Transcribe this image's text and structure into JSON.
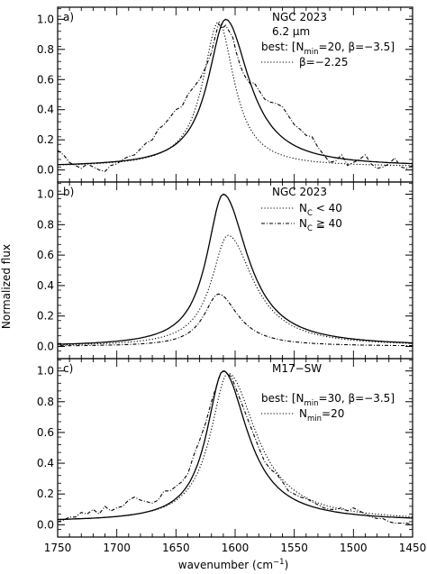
{
  "figure": {
    "ylabel": "Normalized flux",
    "xlabel_main": "wavenumber (cm",
    "xlabel_sup": "−1",
    "xlabel_close": ")"
  },
  "chart_data": [
    {
      "type": "line",
      "panel_label": "a)",
      "title_lines": [
        "NGC 2023",
        "6.2 μm"
      ],
      "xlim": [
        1750,
        1450
      ],
      "ylim": [
        -0.08,
        1.08
      ],
      "yticks": [
        0.0,
        0.2,
        0.4,
        0.6,
        0.8,
        1.0
      ],
      "xticks": [
        1750,
        1700,
        1650,
        1600,
        1550,
        1500,
        1450
      ],
      "legend": {
        "placement": "top-right",
        "rows": [
          {
            "style": "solid",
            "text": "best: [N",
            "sub": "min",
            "text2": "=20, β=−3.5]"
          },
          {
            "style": "dotted",
            "text": "β=−2.25"
          }
        ]
      },
      "series": [
        {
          "name": "best: [Nmin=20, β=−3.5]",
          "style": "solid",
          "model": {
            "peak": 1608,
            "amp": 1.0,
            "wl": 18,
            "wr": 24,
            "base": 0.02
          }
        },
        {
          "name": "β=−2.25",
          "style": "dotted",
          "model": {
            "peak": 1614,
            "amp": 0.985,
            "wl": 16,
            "wr": 16,
            "base": 0.02
          }
        },
        {
          "name": "data",
          "style": "dashdot",
          "x": [
            1750,
            1745,
            1740,
            1735,
            1730,
            1725,
            1720,
            1715,
            1710,
            1705,
            1700,
            1695,
            1690,
            1685,
            1680,
            1675,
            1670,
            1665,
            1660,
            1655,
            1650,
            1645,
            1640,
            1635,
            1630,
            1625,
            1620,
            1617,
            1614,
            1611,
            1608,
            1605,
            1602,
            1599,
            1596,
            1593,
            1590,
            1587,
            1584,
            1580,
            1575,
            1570,
            1565,
            1560,
            1555,
            1550,
            1545,
            1540,
            1535,
            1530,
            1525,
            1520,
            1515,
            1510,
            1505,
            1500,
            1495,
            1490,
            1485,
            1480,
            1475,
            1470,
            1465,
            1460,
            1455,
            1450
          ],
          "y": [
            0.13,
            0.1,
            0.05,
            0.03,
            0.01,
            0.04,
            0.02,
            0.0,
            -0.01,
            0.03,
            0.04,
            0.07,
            0.09,
            0.1,
            0.14,
            0.18,
            0.2,
            0.27,
            0.3,
            0.35,
            0.4,
            0.42,
            0.5,
            0.55,
            0.6,
            0.68,
            0.78,
            0.88,
            0.97,
            0.94,
            0.96,
            0.92,
            0.88,
            0.78,
            0.7,
            0.64,
            0.6,
            0.57,
            0.58,
            0.53,
            0.47,
            0.45,
            0.44,
            0.42,
            0.36,
            0.3,
            0.27,
            0.23,
            0.22,
            0.15,
            0.1,
            0.05,
            0.06,
            0.1,
            0.03,
            0.05,
            0.07,
            0.1,
            0.04,
            0.01,
            0.02,
            0.04,
            0.08,
            0.02,
            0.01,
            0.03
          ]
        }
      ]
    },
    {
      "type": "line",
      "panel_label": "b)",
      "title_lines": [
        "NGC 2023"
      ],
      "xlim": [
        1750,
        1450
      ],
      "ylim": [
        -0.08,
        1.08
      ],
      "yticks": [
        0.0,
        0.2,
        0.4,
        0.6,
        0.8,
        1.0
      ],
      "xticks": [
        1750,
        1700,
        1650,
        1600,
        1550,
        1500,
        1450
      ],
      "legend": {
        "placement": "top-right",
        "rows": [
          {
            "style": "dotted",
            "text": "N",
            "sub": "C",
            "text2": " < 40"
          },
          {
            "style": "dashdot",
            "text": "N",
            "sub": "C",
            "text2": " ≧ 40"
          }
        ]
      },
      "series": [
        {
          "name": "total",
          "style": "solid",
          "model": {
            "peak": 1610,
            "amp": 1.0,
            "wl": 17,
            "wr": 25,
            "base": 0.0
          }
        },
        {
          "name": "NC < 40",
          "style": "dotted",
          "model": {
            "peak": 1606,
            "amp": 0.73,
            "wl": 17,
            "wr": 26,
            "base": 0.0
          }
        },
        {
          "name": "NC ≧ 40",
          "style": "dashdot",
          "model": {
            "peak": 1614,
            "amp": 0.345,
            "wl": 15,
            "wr": 20,
            "base": 0.0
          }
        }
      ]
    },
    {
      "type": "line",
      "panel_label": "c)",
      "title_lines": [
        "M17−SW"
      ],
      "xlim": [
        1750,
        1450
      ],
      "ylim": [
        -0.08,
        1.08
      ],
      "yticks": [
        0.0,
        0.2,
        0.4,
        0.6,
        0.8,
        1.0
      ],
      "xticks": [
        1750,
        1700,
        1650,
        1600,
        1550,
        1500,
        1450
      ],
      "legend": {
        "placement": "top-right",
        "rows": [
          {
            "style": "solid",
            "text": "best: [N",
            "sub": "min",
            "text2": "=30, β=−3.5]"
          },
          {
            "style": "dotted",
            "text": "N",
            "sub": "min",
            "text2": "=20"
          }
        ]
      },
      "series": [
        {
          "name": "best: [Nmin=30, β=−3.5]",
          "style": "solid",
          "model": {
            "peak": 1610,
            "amp": 1.0,
            "wl": 17,
            "wr": 25,
            "base": 0.02
          }
        },
        {
          "name": "Nmin=20",
          "style": "dotted",
          "model": {
            "peak": 1606,
            "amp": 0.985,
            "wl": 18,
            "wr": 29,
            "base": 0.02
          }
        },
        {
          "name": "data",
          "style": "dashdot",
          "x": [
            1750,
            1745,
            1740,
            1735,
            1730,
            1725,
            1720,
            1715,
            1710,
            1705,
            1700,
            1695,
            1690,
            1685,
            1680,
            1675,
            1670,
            1665,
            1660,
            1655,
            1650,
            1645,
            1640,
            1635,
            1630,
            1625,
            1620,
            1615,
            1612,
            1609,
            1606,
            1603,
            1600,
            1597,
            1594,
            1590,
            1585,
            1580,
            1575,
            1570,
            1565,
            1560,
            1555,
            1550,
            1545,
            1540,
            1535,
            1530,
            1525,
            1520,
            1515,
            1510,
            1505,
            1500,
            1495,
            1490,
            1485,
            1480,
            1475,
            1470,
            1465,
            1460,
            1455,
            1450
          ],
          "y": [
            0.02,
            0.03,
            0.05,
            0.05,
            0.08,
            0.07,
            0.1,
            0.07,
            0.12,
            0.09,
            0.11,
            0.12,
            0.16,
            0.18,
            0.16,
            0.15,
            0.14,
            0.16,
            0.22,
            0.22,
            0.25,
            0.28,
            0.33,
            0.45,
            0.55,
            0.66,
            0.8,
            0.92,
            0.99,
            1.0,
            0.98,
            0.96,
            0.9,
            0.84,
            0.78,
            0.7,
            0.6,
            0.5,
            0.41,
            0.36,
            0.33,
            0.28,
            0.22,
            0.2,
            0.18,
            0.17,
            0.15,
            0.13,
            0.11,
            0.1,
            0.1,
            0.11,
            0.09,
            0.11,
            0.09,
            0.07,
            0.05,
            0.04,
            0.04,
            0.02,
            0.01,
            0.01,
            0.01,
            0.0
          ]
        }
      ]
    }
  ]
}
